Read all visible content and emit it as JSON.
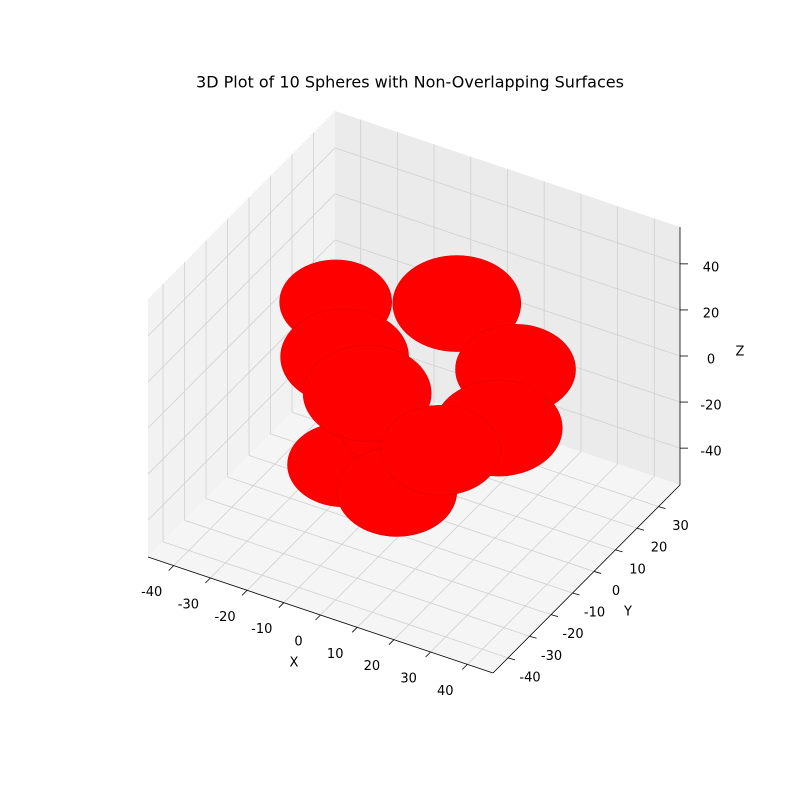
{
  "chart_data": {
    "type": "sphere3d",
    "title": "3D Plot of 10 Spheres with Non-Overlapping Surfaces",
    "xlabel": "X",
    "ylabel": "Y",
    "zlabel": "Z",
    "xlim": [
      -47,
      47
    ],
    "ylim": [
      -47,
      40
    ],
    "zlim": [
      -56,
      56
    ],
    "xticks": [
      -40,
      -30,
      -20,
      -10,
      0,
      10,
      20,
      30,
      40
    ],
    "yticks": [
      -40,
      -30,
      -20,
      -10,
      0,
      10,
      20,
      30
    ],
    "zticks": [
      -40,
      -20,
      0,
      20,
      40
    ],
    "grid": true,
    "color": "#ff0000",
    "spheres": [
      {
        "x": -31,
        "y": 13,
        "z": 7,
        "r": 14
      },
      {
        "x": -23,
        "y": 3,
        "z": -50,
        "r": 14
      },
      {
        "x": 2,
        "y": 13,
        "z": 24,
        "r": 16
      },
      {
        "x": 18,
        "y": 13,
        "z": 4,
        "r": 15
      },
      {
        "x": -11,
        "y": -17,
        "z": 22,
        "r": 16
      },
      {
        "x": -2,
        "y": -12,
        "z": -9,
        "r": 12
      },
      {
        "x": 1,
        "y": -27,
        "z": 22,
        "r": 16
      },
      {
        "x": 25,
        "y": -7,
        "z": 1,
        "r": 16
      },
      {
        "x": 12,
        "y": -32,
        "z": -10,
        "r": 15
      },
      {
        "x": 21,
        "y": -27,
        "z": 8,
        "r": 15
      }
    ]
  }
}
